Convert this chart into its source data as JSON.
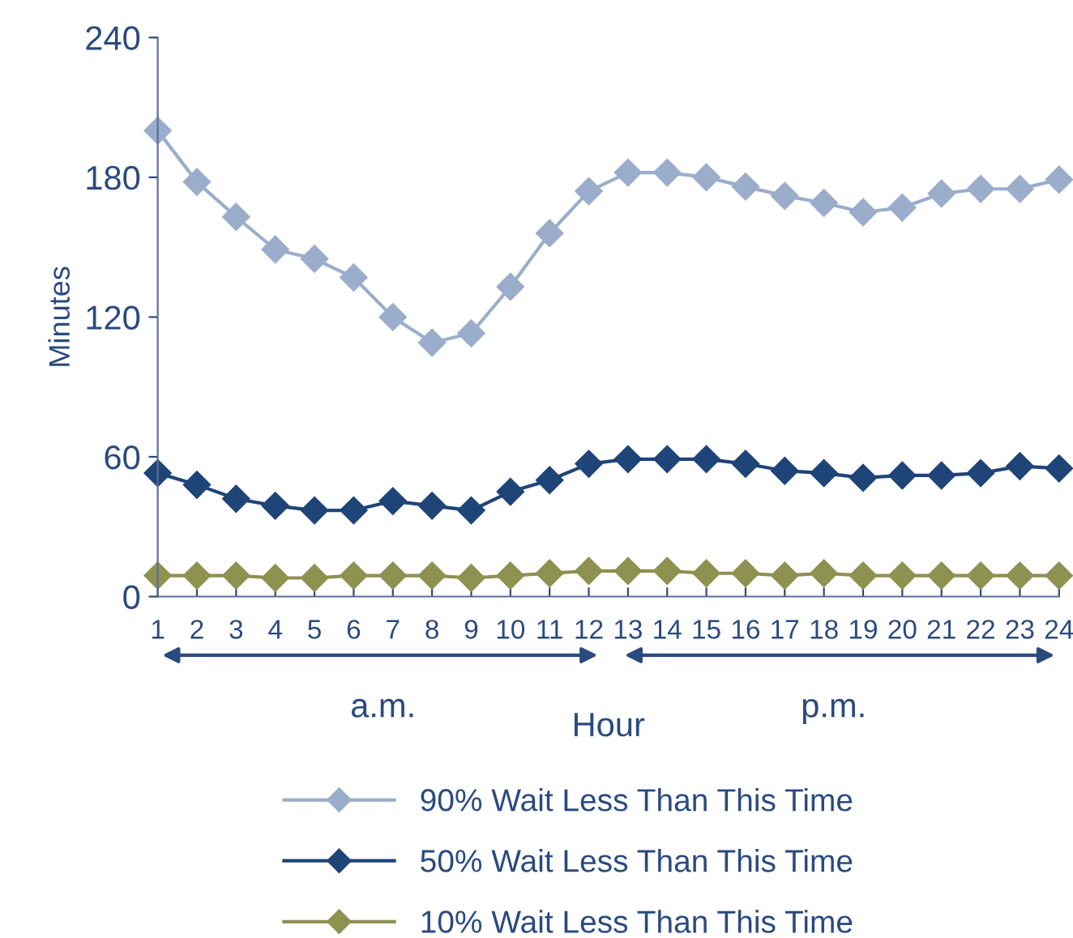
{
  "chart_data": {
    "type": "line",
    "ylabel": "Minutes",
    "xlabel": "Hour",
    "annotations": [
      "a.m.",
      "p.m."
    ],
    "x": [
      1,
      2,
      3,
      4,
      5,
      6,
      7,
      8,
      9,
      10,
      11,
      12,
      13,
      14,
      15,
      16,
      17,
      18,
      19,
      20,
      21,
      22,
      23,
      24
    ],
    "xlim": [
      1,
      24
    ],
    "xticks": [
      1,
      2,
      3,
      4,
      5,
      6,
      7,
      8,
      9,
      10,
      11,
      12,
      13,
      14,
      15,
      16,
      17,
      18,
      19,
      20,
      21,
      22,
      23,
      24
    ],
    "ylim": [
      0,
      240
    ],
    "yticks": [
      0,
      60,
      120,
      180,
      240
    ],
    "grid": false,
    "legend": "bottom",
    "marker": "diamond",
    "line_style": "solid",
    "series": [
      {
        "name": "90% Wait Less Than This Time",
        "color": "#9aadcb",
        "values": [
          200,
          178,
          163,
          149,
          145,
          137,
          120,
          109,
          113,
          133,
          156,
          174,
          182,
          182,
          180,
          176,
          172,
          169,
          165,
          167,
          173,
          175,
          175,
          179
        ]
      },
      {
        "name": "50% Wait Less Than This Time",
        "color": "#1f4478",
        "values": [
          53,
          48,
          42,
          39,
          37,
          37,
          41,
          39,
          37,
          45,
          50,
          57,
          59,
          59,
          59,
          57,
          54,
          53,
          51,
          52,
          52,
          53,
          56,
          55
        ]
      },
      {
        "name": "10% Wait Less Than This Time",
        "color": "#8e9150",
        "values": [
          9,
          9,
          9,
          8,
          8,
          9,
          9,
          9,
          8,
          9,
          10,
          11,
          11,
          11,
          10,
          10,
          9,
          10,
          9,
          9,
          9,
          9,
          9,
          9
        ]
      }
    ]
  }
}
